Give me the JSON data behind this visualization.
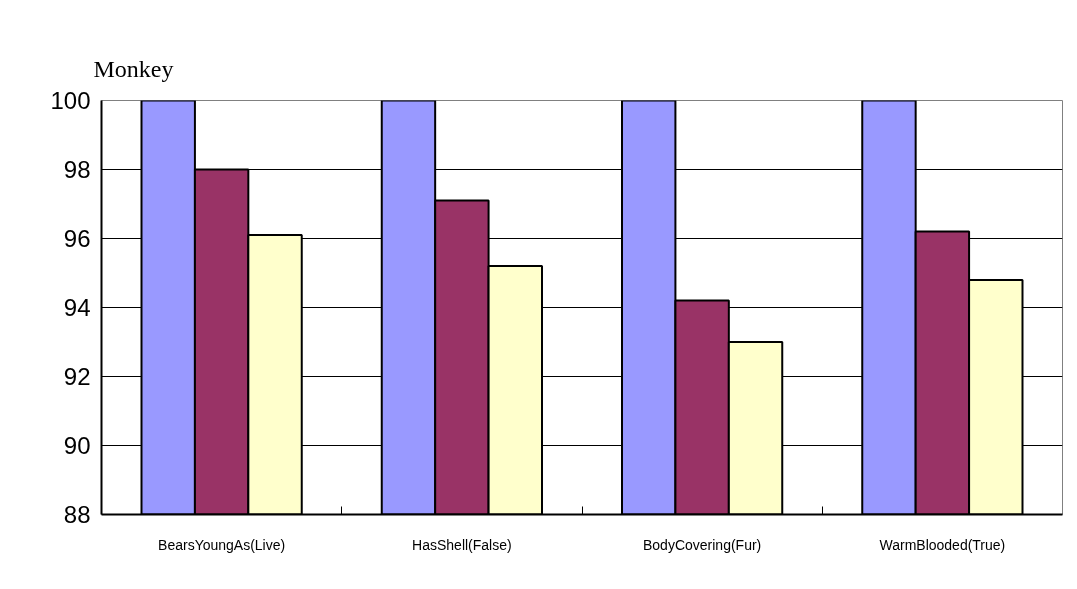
{
  "chart_data": {
    "type": "bar",
    "title": "Monkey",
    "categories": [
      "BearsYoungAs(Live)",
      "HasShell(False)",
      "BodyCovering(Fur)",
      "WarmBlooded(True)"
    ],
    "series": [
      {
        "color": "#9999ff",
        "values": [
          100,
          100,
          100,
          100
        ]
      },
      {
        "color": "#993366",
        "values": [
          98.0,
          97.1,
          94.2,
          96.2
        ]
      },
      {
        "color": "#ffffcc",
        "values": [
          96.1,
          95.2,
          93.0,
          94.8
        ]
      }
    ],
    "ylim": [
      88,
      100
    ],
    "yticks": [
      88,
      90,
      92,
      94,
      96,
      98,
      100
    ],
    "grid": "y"
  }
}
